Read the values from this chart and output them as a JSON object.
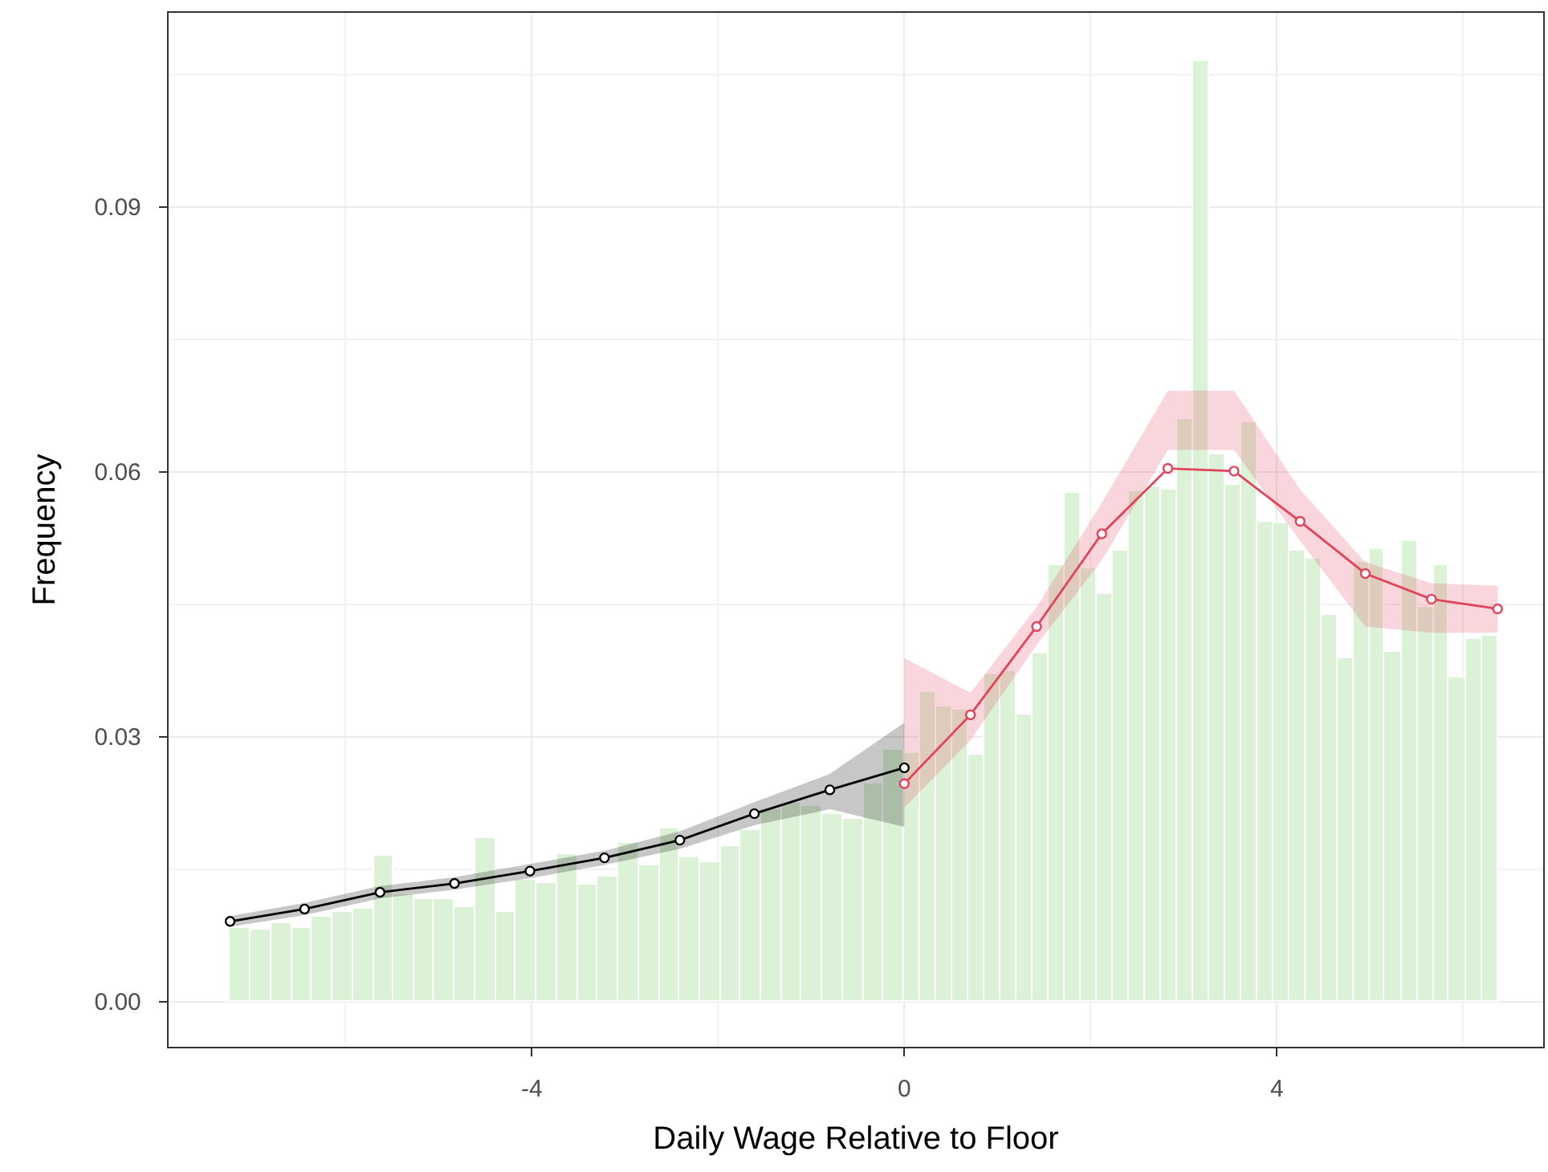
{
  "chart_data": {
    "type": "histogram",
    "xlabel": "Daily Wage Relative to Floor",
    "ylabel": "Frequency",
    "xlim": [
      -7.9,
      6.86
    ],
    "ylim": [
      -0.0051,
      0.112
    ],
    "xticks": [
      -4,
      0,
      4
    ],
    "yticks": [
      {
        "value": 0,
        "label": "0.00"
      },
      0.03,
      0.06,
      0.09
    ],
    "grid": true,
    "series": [
      {
        "color": "#dcf2d7",
        "bins": [
          -7.24,
          -7.02,
          -6.8,
          -6.58,
          -6.36,
          -6.14,
          -5.92,
          -5.7,
          -5.48,
          -5.27,
          -5.05,
          -4.83,
          -4.61,
          -4.39,
          -4.17,
          -3.95,
          -3.73,
          -3.51,
          -3.29,
          -3.07,
          -2.85,
          -2.63,
          -2.41,
          -2.19,
          -1.97,
          -1.76,
          -1.54,
          -1.32,
          -1.1,
          -0.88,
          -0.66,
          -0.44,
          -0.22,
          0,
          0.17,
          0.34,
          0.52,
          0.69,
          0.86,
          1.03,
          1.21,
          1.38,
          1.55,
          1.72,
          1.89,
          2.07,
          2.24,
          2.41,
          2.58,
          2.75,
          2.93,
          3.1,
          3.27,
          3.44,
          3.62,
          3.79,
          3.96,
          4.13,
          4.3,
          4.48,
          4.65,
          4.82,
          4.99,
          5.16,
          5.34,
          5.51,
          5.68,
          5.85,
          6.03,
          6.2,
          6.37
        ],
        "values": [
          0.0083,
          0.0081,
          0.0089,
          0.0084,
          0.0097,
          0.0102,
          0.0106,
          0.0165,
          0.0122,
          0.0116,
          0.0116,
          0.0108,
          0.0186,
          0.0101,
          0.0138,
          0.0135,
          0.0168,
          0.0133,
          0.0141,
          0.018,
          0.0154,
          0.0196,
          0.0164,
          0.0159,
          0.0176,
          0.0194,
          0.0219,
          0.0225,
          0.0222,
          0.0213,
          0.0207,
          0.0247,
          0.0286,
          0.0281,
          0.035,
          0.0335,
          0.033,
          0.028,
          0.0371,
          0.0374,
          0.0325,
          0.0395,
          0.0495,
          0.0577,
          0.049,
          0.0461,
          0.0511,
          0.0578,
          0.0584,
          0.058,
          0.066,
          0.1066,
          0.062,
          0.0585,
          0.0657,
          0.0543,
          0.0541,
          0.051,
          0.0502,
          0.0439,
          0.0389,
          0.0498,
          0.0513,
          0.0396,
          0.0521,
          0.0447,
          0.0495,
          0.0368,
          0.041,
          0.0415
        ]
      },
      {
        "type": "line",
        "color": "#000000",
        "marker": "circle",
        "x": [
          -7.24,
          -6.44,
          -5.63,
          -4.83,
          -4.02,
          -3.22,
          -2.41,
          -1.61,
          -0.8,
          0
        ],
        "values": [
          0.0091,
          0.0105,
          0.0124,
          0.0134,
          0.0148,
          0.0163,
          0.0183,
          0.0213,
          0.024,
          0.0265
        ],
        "lower": [
          0.0085,
          0.0098,
          0.0117,
          0.0127,
          0.014,
          0.0155,
          0.0173,
          0.02,
          0.0218,
          0.0198
        ],
        "upper": [
          0.0097,
          0.0112,
          0.0131,
          0.0141,
          0.0156,
          0.0171,
          0.0193,
          0.0226,
          0.0258,
          0.0316
        ]
      },
      {
        "type": "line",
        "color": "#e3435a",
        "marker": "circle",
        "x": [
          0,
          0.71,
          1.42,
          2.12,
          2.83,
          3.54,
          4.25,
          4.95,
          5.66,
          6.37
        ],
        "values": [
          0.0247,
          0.0325,
          0.0425,
          0.053,
          0.0604,
          0.0601,
          0.0544,
          0.0485,
          0.0456,
          0.0445
        ],
        "lower": [
          0.022,
          0.0296,
          0.0404,
          0.05,
          0.0625,
          0.0625,
          0.0522,
          0.0425,
          0.0418,
          0.0418
        ],
        "upper": [
          0.0389,
          0.035,
          0.0447,
          0.0565,
          0.0692,
          0.0692,
          0.058,
          0.0498,
          0.0474,
          0.0471
        ]
      }
    ]
  }
}
